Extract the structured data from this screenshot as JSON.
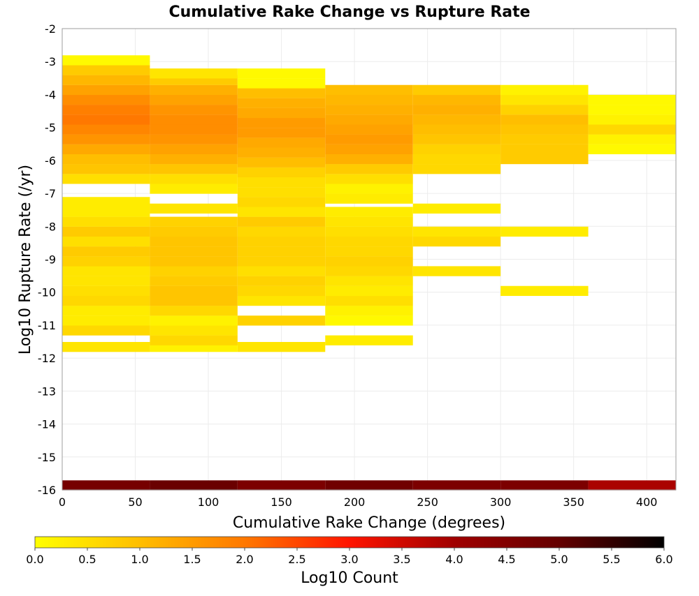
{
  "chart_data": {
    "type": "heatmap",
    "title": "Cumulative Rake Change vs Rupture Rate",
    "xlabel": "Cumulative Rake Change (degrees)",
    "ylabel": "Log10 Rupture Rate (/yr)",
    "xlim": [
      0,
      420
    ],
    "ylim": [
      -16,
      -2
    ],
    "x_ticks": [
      0,
      50,
      100,
      150,
      200,
      250,
      300,
      350,
      400
    ],
    "y_ticks": [
      -16,
      -15,
      -14,
      -13,
      -12,
      -11,
      -10,
      -9,
      -8,
      -7,
      -6,
      -5,
      -4,
      -3,
      -2
    ],
    "grid": true,
    "x_bin_edges": [
      0,
      60,
      120,
      180,
      240,
      300,
      360,
      420
    ],
    "y_bin_height": 0.29,
    "color_scale": {
      "label": "Log10 Count",
      "min": 0.0,
      "max": 6.0,
      "ticks": [
        "0.0",
        "0.5",
        "1.0",
        "1.5",
        "2.0",
        "2.5",
        "3.0",
        "3.5",
        "4.0",
        "4.5",
        "5.0",
        "5.5",
        "6.0"
      ],
      "stops": [
        {
          "v": 0.0,
          "color": "#ffff00"
        },
        {
          "v": 1.0,
          "color": "#ffbe00"
        },
        {
          "v": 2.0,
          "color": "#ff7800"
        },
        {
          "v": 3.0,
          "color": "#ff1400"
        },
        {
          "v": 4.0,
          "color": "#a00000"
        },
        {
          "v": 5.0,
          "color": "#640000"
        },
        {
          "v": 6.0,
          "color": "#000000"
        }
      ]
    },
    "columns": [
      {
        "x0": 0,
        "x1": 60,
        "cells": [
          [
            -16.0,
            4.7
          ],
          [
            -11.8,
            0.4
          ],
          [
            -11.3,
            0.6
          ],
          [
            -11.0,
            0.3
          ],
          [
            -10.7,
            0.3
          ],
          [
            -10.4,
            0.6
          ],
          [
            -10.1,
            0.5
          ],
          [
            -9.8,
            0.4
          ],
          [
            -9.5,
            0.4
          ],
          [
            -9.2,
            0.7
          ],
          [
            -8.9,
            0.8
          ],
          [
            -8.6,
            0.5
          ],
          [
            -8.3,
            0.8
          ],
          [
            -8.0,
            0.5
          ],
          [
            -7.7,
            0.3
          ],
          [
            -7.4,
            0.3
          ],
          [
            -6.7,
            0.5
          ],
          [
            -6.4,
            0.9
          ],
          [
            -6.1,
            1.0
          ],
          [
            -5.8,
            1.3
          ],
          [
            -5.5,
            1.6
          ],
          [
            -5.2,
            1.8
          ],
          [
            -4.9,
            2.0
          ],
          [
            -4.6,
            1.9
          ],
          [
            -4.3,
            1.7
          ],
          [
            -4.0,
            1.4
          ],
          [
            -3.7,
            1.1
          ],
          [
            -3.4,
            0.8
          ],
          [
            -3.1,
            0.1
          ]
        ]
      },
      {
        "x0": 60,
        "x1": 120,
        "cells": [
          [
            -16.0,
            4.9
          ],
          [
            -11.8,
            0.2
          ],
          [
            -11.6,
            0.6
          ],
          [
            -11.3,
            0.4
          ],
          [
            -11.0,
            0.2
          ],
          [
            -10.7,
            0.6
          ],
          [
            -10.4,
            0.9
          ],
          [
            -10.1,
            0.9
          ],
          [
            -9.8,
            0.8
          ],
          [
            -9.5,
            0.7
          ],
          [
            -9.2,
            0.9
          ],
          [
            -8.9,
            0.9
          ],
          [
            -8.6,
            0.9
          ],
          [
            -8.3,
            0.8
          ],
          [
            -8.0,
            0.7
          ],
          [
            -7.6,
            0.4
          ],
          [
            -7.0,
            0.3
          ],
          [
            -6.7,
            0.5
          ],
          [
            -6.4,
            0.9
          ],
          [
            -6.1,
            1.2
          ],
          [
            -5.8,
            1.4
          ],
          [
            -5.5,
            1.6
          ],
          [
            -5.2,
            1.7
          ],
          [
            -4.9,
            1.7
          ],
          [
            -4.6,
            1.6
          ],
          [
            -4.3,
            1.4
          ],
          [
            -4.0,
            1.2
          ],
          [
            -3.7,
            0.8
          ],
          [
            -3.5,
            0.4
          ]
        ]
      },
      {
        "x0": 120,
        "x1": 180,
        "cells": [
          [
            -16.0,
            4.6
          ],
          [
            -11.8,
            0.4
          ],
          [
            -11.0,
            0.7
          ],
          [
            -10.4,
            0.4
          ],
          [
            -10.1,
            0.6
          ],
          [
            -9.8,
            0.7
          ],
          [
            -9.5,
            0.5
          ],
          [
            -9.2,
            0.7
          ],
          [
            -8.9,
            0.7
          ],
          [
            -8.6,
            0.7
          ],
          [
            -8.3,
            0.6
          ],
          [
            -8.0,
            0.8
          ],
          [
            -7.7,
            0.4
          ],
          [
            -7.4,
            0.6
          ],
          [
            -7.1,
            0.5
          ],
          [
            -6.8,
            0.5
          ],
          [
            -6.5,
            0.7
          ],
          [
            -6.2,
            1.0
          ],
          [
            -5.9,
            1.2
          ],
          [
            -5.6,
            1.3
          ],
          [
            -5.3,
            1.5
          ],
          [
            -5.0,
            1.5
          ],
          [
            -4.7,
            1.3
          ],
          [
            -4.4,
            1.2
          ],
          [
            -4.1,
            1.0
          ],
          [
            -3.8,
            0.1
          ],
          [
            -3.5,
            0.1
          ]
        ]
      },
      {
        "x0": 180,
        "x1": 240,
        "cells": [
          [
            -16.0,
            4.8
          ],
          [
            -11.6,
            0.3
          ],
          [
            -11.0,
            0.1
          ],
          [
            -10.7,
            0.2
          ],
          [
            -10.4,
            0.5
          ],
          [
            -10.1,
            0.3
          ],
          [
            -9.8,
            0.4
          ],
          [
            -9.5,
            0.6
          ],
          [
            -9.2,
            0.7
          ],
          [
            -8.9,
            0.6
          ],
          [
            -8.6,
            0.6
          ],
          [
            -8.3,
            0.5
          ],
          [
            -8.0,
            0.4
          ],
          [
            -7.7,
            0.3
          ],
          [
            -7.3,
            0.3
          ],
          [
            -7.0,
            0.2
          ],
          [
            -6.7,
            0.5
          ],
          [
            -6.4,
            0.8
          ],
          [
            -6.1,
            1.2
          ],
          [
            -5.8,
            1.4
          ],
          [
            -5.5,
            1.5
          ],
          [
            -5.2,
            1.4
          ],
          [
            -4.9,
            1.3
          ],
          [
            -4.6,
            1.2
          ],
          [
            -4.3,
            1.1
          ],
          [
            -4.0,
            1.0
          ]
        ]
      },
      {
        "x0": 240,
        "x1": 300,
        "cells": [
          [
            -16.0,
            4.6
          ],
          [
            -9.5,
            0.4
          ],
          [
            -8.6,
            0.6
          ],
          [
            -8.3,
            0.4
          ],
          [
            -7.6,
            0.3
          ],
          [
            -6.4,
            0.6
          ],
          [
            -6.1,
            0.6
          ],
          [
            -5.8,
            0.7
          ],
          [
            -5.5,
            0.9
          ],
          [
            -5.2,
            1.0
          ],
          [
            -4.9,
            1.1
          ],
          [
            -4.6,
            1.2
          ],
          [
            -4.3,
            1.1
          ],
          [
            -4.0,
            0.8
          ]
        ]
      },
      {
        "x0": 300,
        "x1": 360,
        "cells": [
          [
            -16.0,
            4.6
          ],
          [
            -10.1,
            0.3
          ],
          [
            -8.3,
            0.3
          ],
          [
            -6.1,
            0.8
          ],
          [
            -5.8,
            0.8
          ],
          [
            -5.5,
            0.8
          ],
          [
            -5.2,
            0.9
          ],
          [
            -4.9,
            1.0
          ],
          [
            -4.6,
            0.7
          ],
          [
            -4.3,
            0.4
          ],
          [
            -4.0,
            0.2
          ]
        ]
      },
      {
        "x0": 360,
        "x1": 420,
        "cells": [
          [
            -16.0,
            3.9
          ],
          [
            -5.8,
            0.1
          ],
          [
            -5.5,
            0.2
          ],
          [
            -5.2,
            0.6
          ],
          [
            -4.9,
            0.2
          ],
          [
            -4.6,
            0.1
          ],
          [
            -4.3,
            0.1
          ]
        ]
      }
    ]
  }
}
